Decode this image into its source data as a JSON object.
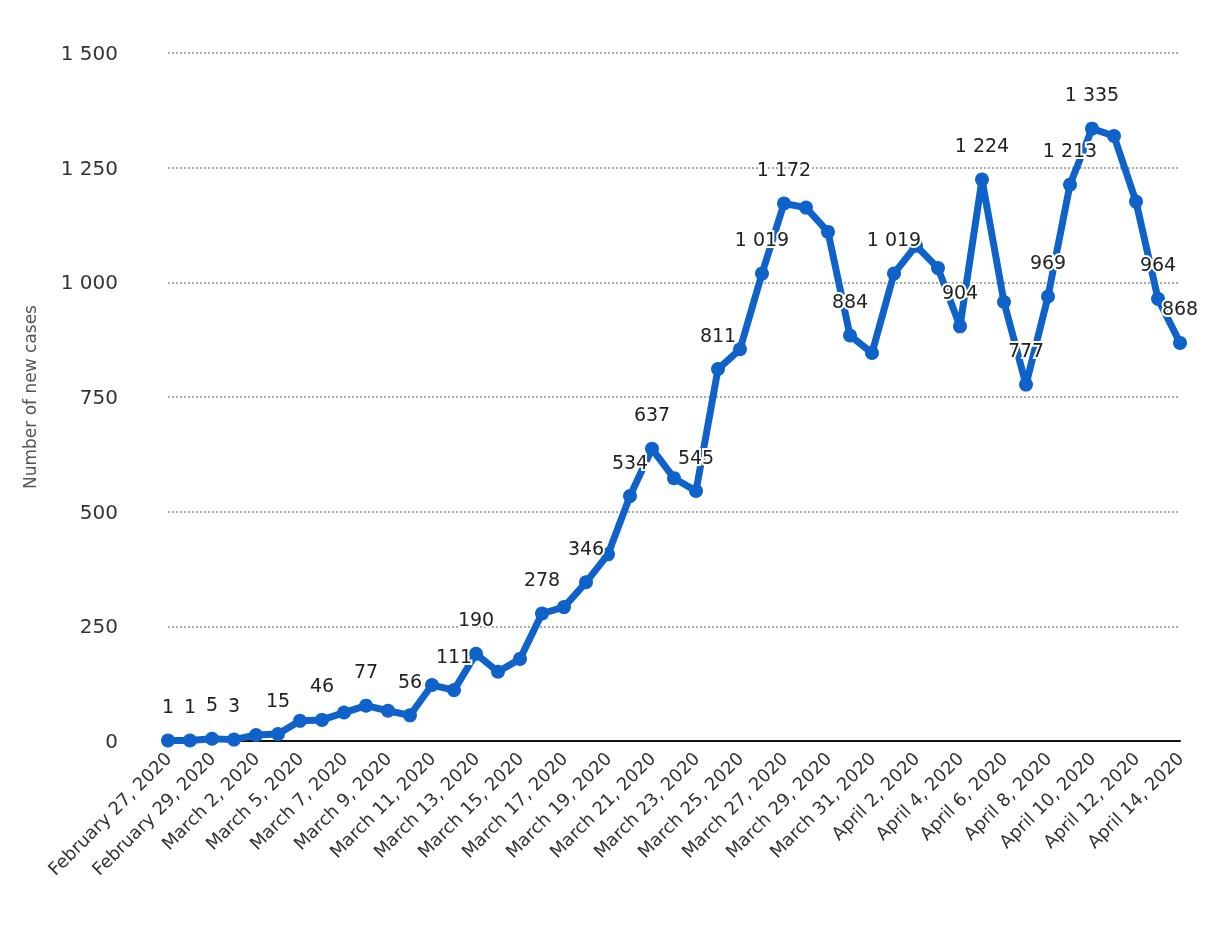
{
  "chart_data": {
    "type": "line",
    "ylabel": "Number of new cases",
    "categories": [
      "February 27, 2020",
      null,
      "February 29, 2020",
      null,
      "March 2, 2020",
      null,
      "March 5, 2020",
      null,
      "March 7, 2020",
      null,
      "March 9, 2020",
      null,
      "March 11, 2020",
      null,
      "March 13, 2020",
      null,
      "March 15, 2020",
      null,
      "March 17, 2020",
      null,
      "March 19, 2020",
      null,
      "March 21, 2020",
      null,
      "March 23, 2020",
      null,
      "March 25, 2020",
      null,
      "March 27, 2020",
      null,
      "March 29, 2020",
      null,
      "March 31, 2020",
      null,
      "April 2, 2020",
      null,
      "April 4, 2020",
      null,
      "April 6, 2020",
      null,
      "April 8, 2020",
      null,
      "April 10, 2020",
      null,
      "April 12, 2020",
      null,
      "April 14, 2020"
    ],
    "series": [
      {
        "color": "#0f62c9",
        "values": [
          1,
          1,
          5,
          3,
          13,
          15,
          44,
          46,
          62,
          77,
          66,
          56,
          122,
          111,
          190,
          151,
          179,
          278,
          292,
          346,
          407,
          534,
          637,
          573,
          545,
          811,
          854,
          1019,
          1172,
          1163,
          1110,
          884,
          846,
          1019,
          1080,
          1031,
          904,
          1224,
          957,
          777,
          969,
          1213,
          1335,
          1319,
          1176,
          964,
          868
        ],
        "value_labels": [
          "1",
          "1",
          "5",
          "3",
          null,
          "15",
          null,
          "46",
          null,
          "77",
          null,
          "56",
          null,
          "111",
          "190",
          null,
          null,
          "278",
          null,
          "346",
          null,
          "534",
          "637",
          null,
          "545",
          "811",
          null,
          "1 019",
          "1 172",
          null,
          null,
          "884",
          null,
          "1 019",
          null,
          null,
          "904",
          "1 224",
          null,
          "777",
          "969",
          "1 213",
          "1 335",
          null,
          null,
          "964",
          "868"
        ]
      }
    ],
    "ylim": [
      0,
      1500
    ],
    "yticks": [
      0,
      250,
      500,
      750,
      {
        "value": 1000,
        "label": "1 000"
      },
      {
        "value": 1250,
        "label": "1 250"
      },
      {
        "value": 1500,
        "label": "1 500"
      }
    ],
    "grid": "y",
    "marker": "circle",
    "line_style": "solid"
  }
}
